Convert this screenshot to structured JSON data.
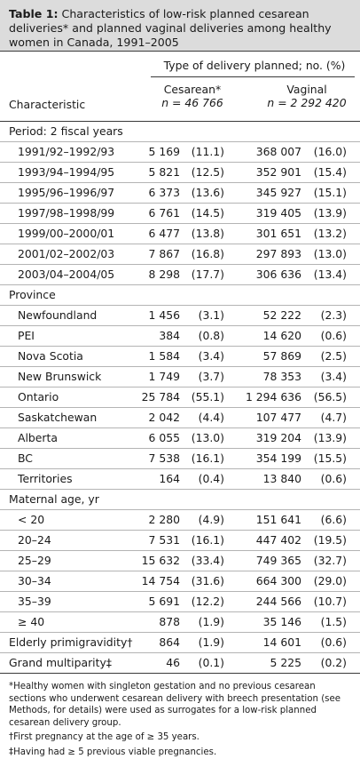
{
  "caption": {
    "label": "Table 1:",
    "text": " Characteristics of low-risk planned cesarean deliveries* and planned vaginal deliveries among healthy women in Canada, 1991–2005"
  },
  "header": {
    "spanner": "Type of delivery planned; no. (%)",
    "characteristic": "Characteristic",
    "cesarean_label": "Cesarean*",
    "cesarean_n": "n = 46 766",
    "vaginal_label": "Vaginal",
    "vaginal_n": "n = 2 292 420"
  },
  "sections": [
    {
      "title": "Period: 2 fiscal years",
      "rows": [
        {
          "label": "1991/92–1992/93",
          "ces_n": "5 169",
          "ces_p": "(11.1)",
          "vag_n": "368 007",
          "vag_p": "(16.0)"
        },
        {
          "label": "1993/94–1994/95",
          "ces_n": "5 821",
          "ces_p": "(12.5)",
          "vag_n": "352 901",
          "vag_p": "(15.4)"
        },
        {
          "label": "1995/96–1996/97",
          "ces_n": "6 373",
          "ces_p": "(13.6)",
          "vag_n": "345 927",
          "vag_p": "(15.1)"
        },
        {
          "label": "1997/98–1998/99",
          "ces_n": "6 761",
          "ces_p": "(14.5)",
          "vag_n": "319 405",
          "vag_p": "(13.9)"
        },
        {
          "label": "1999/00–2000/01",
          "ces_n": "6 477",
          "ces_p": "(13.8)",
          "vag_n": "301 651",
          "vag_p": "(13.2)"
        },
        {
          "label": "2001/02–2002/03",
          "ces_n": "7 867",
          "ces_p": "(16.8)",
          "vag_n": "297 893",
          "vag_p": "(13.0)"
        },
        {
          "label": "2003/04–2004/05",
          "ces_n": "8 298",
          "ces_p": "(17.7)",
          "vag_n": "306 636",
          "vag_p": "(13.4)"
        }
      ]
    },
    {
      "title": "Province",
      "rows": [
        {
          "label": "Newfoundland",
          "ces_n": "1 456",
          "ces_p": "(3.1)",
          "vag_n": "52 222",
          "vag_p": "(2.3)"
        },
        {
          "label": "PEI",
          "ces_n": "384",
          "ces_p": "(0.8)",
          "vag_n": "14 620",
          "vag_p": "(0.6)"
        },
        {
          "label": "Nova Scotia",
          "ces_n": "1 584",
          "ces_p": "(3.4)",
          "vag_n": "57 869",
          "vag_p": "(2.5)"
        },
        {
          "label": "New Brunswick",
          "ces_n": "1 749",
          "ces_p": "(3.7)",
          "vag_n": "78 353",
          "vag_p": "(3.4)"
        },
        {
          "label": "Ontario",
          "ces_n": "25 784",
          "ces_p": "(55.1)",
          "vag_n": "1 294 636",
          "vag_p": "(56.5)"
        },
        {
          "label": "Saskatchewan",
          "ces_n": "2 042",
          "ces_p": "(4.4)",
          "vag_n": "107 477",
          "vag_p": "(4.7)"
        },
        {
          "label": "Alberta",
          "ces_n": "6 055",
          "ces_p": "(13.0)",
          "vag_n": "319 204",
          "vag_p": "(13.9)"
        },
        {
          "label": "BC",
          "ces_n": "7 538",
          "ces_p": "(16.1)",
          "vag_n": "354 199",
          "vag_p": "(15.5)"
        },
        {
          "label": "Territories",
          "ces_n": "164",
          "ces_p": "(0.4)",
          "vag_n": "13 840",
          "vag_p": "(0.6)"
        }
      ]
    },
    {
      "title": "Maternal age, yr",
      "rows": [
        {
          "label": "< 20",
          "ces_n": "2 280",
          "ces_p": "(4.9)",
          "vag_n": "151 641",
          "vag_p": "(6.6)"
        },
        {
          "label": "20–24",
          "ces_n": "7 531",
          "ces_p": "(16.1)",
          "vag_n": "447 402",
          "vag_p": "(19.5)"
        },
        {
          "label": "25–29",
          "ces_n": "15 632",
          "ces_p": "(33.4)",
          "vag_n": "749 365",
          "vag_p": "(32.7)"
        },
        {
          "label": "30–34",
          "ces_n": "14 754",
          "ces_p": "(31.6)",
          "vag_n": "664 300",
          "vag_p": "(29.0)"
        },
        {
          "label": "35–39",
          "ces_n": "5 691",
          "ces_p": "(12.2)",
          "vag_n": "244 566",
          "vag_p": "(10.7)"
        },
        {
          "label": "≥ 40",
          "ces_n": "878",
          "ces_p": "(1.9)",
          "vag_n": "35 146",
          "vag_p": "(1.5)"
        }
      ]
    }
  ],
  "standalone_rows": [
    {
      "label": "Elderly primigravidity†",
      "ces_n": "864",
      "ces_p": "(1.9)",
      "vag_n": "14 601",
      "vag_p": "(0.6)"
    },
    {
      "label": "Grand multiparity‡",
      "ces_n": "46",
      "ces_p": "(0.1)",
      "vag_n": "5 225",
      "vag_p": "(0.2)"
    }
  ],
  "footnotes": [
    "*Healthy women with singleton gestation and no previous cesarean sections who underwent cesarean delivery with breech presentation (see Methods, for details) were used as surrogates for a low-risk planned cesarean delivery group.",
    "†First pregnancy at the age of ≥ 35 years.",
    "‡Having had ≥ 5 previous viable pregnancies."
  ]
}
